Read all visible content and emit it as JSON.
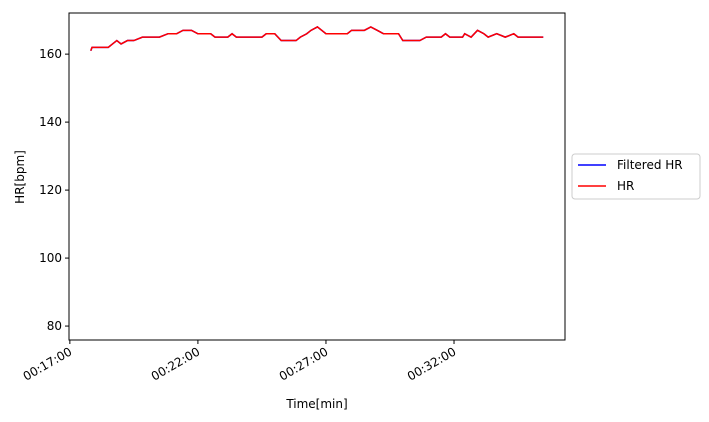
{
  "chart_data": {
    "type": "line",
    "xlabel": "Time[min]",
    "ylabel": "HR[bpm]",
    "x": [
      "00:17:49",
      "00:17:52",
      "00:18:00",
      "00:18:30",
      "00:18:40",
      "00:18:50",
      "00:19:00",
      "00:19:15",
      "00:19:30",
      "00:19:50",
      "00:20:10",
      "00:20:30",
      "00:20:50",
      "00:21:10",
      "00:21:25",
      "00:21:45",
      "00:22:00",
      "00:22:30",
      "00:22:40",
      "00:23:10",
      "00:23:20",
      "00:23:30",
      "00:24:00",
      "00:24:30",
      "00:24:40",
      "00:25:00",
      "00:25:15",
      "00:25:50",
      "00:26:00",
      "00:26:15",
      "00:26:25",
      "00:26:40",
      "00:26:50",
      "00:27:00",
      "00:27:30",
      "00:27:50",
      "00:28:00",
      "00:28:30",
      "00:28:45",
      "00:29:00",
      "00:29:15",
      "00:29:50",
      "00:30:00",
      "00:30:40",
      "00:30:55",
      "00:31:30",
      "00:31:40",
      "00:31:50",
      "00:32:20",
      "00:32:25",
      "00:32:40",
      "00:32:55",
      "00:33:10",
      "00:33:20",
      "00:33:40",
      "00:34:00",
      "00:34:20",
      "00:34:30",
      "00:35:00",
      "00:35:29"
    ],
    "series": [
      {
        "name": "Filtered HR",
        "color": "#0000ff",
        "values": [
          161,
          162,
          162,
          162,
          163,
          164,
          163,
          164,
          164,
          165,
          165,
          165,
          166,
          166,
          167,
          167,
          166,
          166,
          165,
          165,
          166,
          165,
          165,
          165,
          166,
          166,
          164,
          164,
          165,
          166,
          167,
          168,
          167,
          166,
          166,
          166,
          167,
          167,
          168,
          167,
          166,
          166,
          164,
          164,
          165,
          165,
          166,
          165,
          165,
          166,
          165,
          167,
          166,
          165,
          166,
          165,
          166,
          165,
          165,
          165
        ]
      },
      {
        "name": "HR",
        "color": "#ff0000",
        "values": [
          161,
          162,
          162,
          162,
          163,
          164,
          163,
          164,
          164,
          165,
          165,
          165,
          166,
          166,
          167,
          167,
          166,
          166,
          165,
          165,
          166,
          165,
          165,
          165,
          166,
          166,
          164,
          164,
          165,
          166,
          167,
          168,
          167,
          166,
          166,
          166,
          167,
          167,
          168,
          167,
          166,
          166,
          164,
          164,
          165,
          165,
          166,
          165,
          165,
          166,
          165,
          167,
          166,
          165,
          166,
          165,
          166,
          165,
          165,
          165
        ]
      }
    ],
    "xlim": [
      "00:16:58",
      "00:36:20"
    ],
    "xticks": [
      "00:17:00",
      "00:22:00",
      "00:27:00",
      "00:32:00"
    ],
    "ylim": [
      75.9,
      172.1
    ],
    "yticks": [
      80,
      100,
      120,
      140,
      160
    ],
    "legend": "right"
  }
}
